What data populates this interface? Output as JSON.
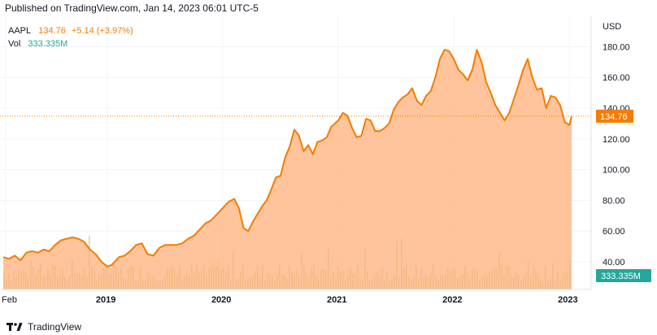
{
  "header": {
    "published": "Published on TradingView.com, Jan 14, 2023 06:01 UTC-5"
  },
  "legend": {
    "symbol": "AAPL",
    "price": "134.76",
    "change": "+5.14 (+3.97%)",
    "vol_label": "Vol",
    "vol_value": "333.335M"
  },
  "footer": {
    "brand": "TradingView",
    "logo_icon": "tradingview-logo-icon"
  },
  "colors": {
    "line": "#f57c00",
    "area": "#ffb07a",
    "vol_bar": "#c8d4a0",
    "badge_price": "#f57c00",
    "badge_vol": "#26a69a"
  },
  "chart_data": {
    "type": "area",
    "currency": "USD",
    "ylim": [
      30,
      190
    ],
    "yticks": [
      40,
      60,
      80,
      100,
      120,
      140,
      160,
      180
    ],
    "ytick_labels": [
      "40.00",
      "60.00",
      "80.00",
      "100.00",
      "120.00",
      "140.00",
      "160.00",
      "180.00"
    ],
    "xticks": [
      {
        "t": 2018.12,
        "label": "Feb"
      },
      {
        "t": 2019.0,
        "label": "2019"
      },
      {
        "t": 2020.0,
        "label": "2020"
      },
      {
        "t": 2021.0,
        "label": "2021"
      },
      {
        "t": 2022.0,
        "label": "2022"
      },
      {
        "t": 2023.0,
        "label": "2023"
      }
    ],
    "last_price": 134.76,
    "last_price_label": "134.76",
    "last_volume_label": "333.335M",
    "series": [
      {
        "values": [
          [
            2018.1,
            43
          ],
          [
            2018.15,
            42
          ],
          [
            2018.2,
            44
          ],
          [
            2018.25,
            41
          ],
          [
            2018.3,
            46
          ],
          [
            2018.35,
            47
          ],
          [
            2018.4,
            46
          ],
          [
            2018.45,
            48
          ],
          [
            2018.5,
            47
          ],
          [
            2018.55,
            51
          ],
          [
            2018.6,
            54
          ],
          [
            2018.65,
            55
          ],
          [
            2018.7,
            56
          ],
          [
            2018.75,
            55
          ],
          [
            2018.8,
            53
          ],
          [
            2018.85,
            48
          ],
          [
            2018.9,
            45
          ],
          [
            2018.95,
            40
          ],
          [
            2019.0,
            37
          ],
          [
            2019.04,
            38
          ],
          [
            2019.1,
            43
          ],
          [
            2019.15,
            44
          ],
          [
            2019.2,
            47
          ],
          [
            2019.25,
            51
          ],
          [
            2019.3,
            52
          ],
          [
            2019.35,
            45
          ],
          [
            2019.4,
            44
          ],
          [
            2019.45,
            49
          ],
          [
            2019.5,
            51
          ],
          [
            2019.55,
            51
          ],
          [
            2019.6,
            51
          ],
          [
            2019.65,
            52
          ],
          [
            2019.7,
            55
          ],
          [
            2019.75,
            57
          ],
          [
            2019.8,
            61
          ],
          [
            2019.85,
            65
          ],
          [
            2019.9,
            67
          ],
          [
            2019.95,
            71
          ],
          [
            2020.0,
            75
          ],
          [
            2020.05,
            79
          ],
          [
            2020.1,
            81
          ],
          [
            2020.14,
            75
          ],
          [
            2020.18,
            62
          ],
          [
            2020.22,
            60
          ],
          [
            2020.26,
            66
          ],
          [
            2020.3,
            71
          ],
          [
            2020.34,
            76
          ],
          [
            2020.38,
            80
          ],
          [
            2020.42,
            87
          ],
          [
            2020.46,
            95
          ],
          [
            2020.5,
            96
          ],
          [
            2020.54,
            108
          ],
          [
            2020.58,
            115
          ],
          [
            2020.62,
            126
          ],
          [
            2020.66,
            122
          ],
          [
            2020.7,
            112
          ],
          [
            2020.74,
            116
          ],
          [
            2020.78,
            110
          ],
          [
            2020.82,
            118
          ],
          [
            2020.86,
            119
          ],
          [
            2020.9,
            121
          ],
          [
            2020.94,
            128
          ],
          [
            2021.0,
            132
          ],
          [
            2021.04,
            137
          ],
          [
            2021.08,
            135
          ],
          [
            2021.12,
            127
          ],
          [
            2021.16,
            121
          ],
          [
            2021.2,
            122
          ],
          [
            2021.24,
            133
          ],
          [
            2021.28,
            132
          ],
          [
            2021.32,
            125
          ],
          [
            2021.36,
            125
          ],
          [
            2021.4,
            127
          ],
          [
            2021.44,
            130
          ],
          [
            2021.48,
            139
          ],
          [
            2021.52,
            144
          ],
          [
            2021.56,
            147
          ],
          [
            2021.6,
            149
          ],
          [
            2021.64,
            153
          ],
          [
            2021.68,
            145
          ],
          [
            2021.72,
            142
          ],
          [
            2021.76,
            148
          ],
          [
            2021.8,
            151
          ],
          [
            2021.84,
            160
          ],
          [
            2021.88,
            172
          ],
          [
            2021.92,
            178
          ],
          [
            2021.96,
            177
          ],
          [
            2022.0,
            172
          ],
          [
            2022.04,
            165
          ],
          [
            2022.08,
            162
          ],
          [
            2022.12,
            158
          ],
          [
            2022.16,
            165
          ],
          [
            2022.2,
            178
          ],
          [
            2022.24,
            170
          ],
          [
            2022.28,
            157
          ],
          [
            2022.32,
            150
          ],
          [
            2022.36,
            142
          ],
          [
            2022.4,
            137
          ],
          [
            2022.44,
            132
          ],
          [
            2022.48,
            137
          ],
          [
            2022.52,
            146
          ],
          [
            2022.56,
            155
          ],
          [
            2022.6,
            165
          ],
          [
            2022.64,
            172
          ],
          [
            2022.68,
            160
          ],
          [
            2022.72,
            152
          ],
          [
            2022.76,
            153
          ],
          [
            2022.8,
            140
          ],
          [
            2022.84,
            148
          ],
          [
            2022.88,
            147
          ],
          [
            2022.92,
            142
          ],
          [
            2022.96,
            131
          ],
          [
            2023.0,
            129
          ],
          [
            2023.02,
            134.76
          ]
        ]
      }
    ]
  }
}
